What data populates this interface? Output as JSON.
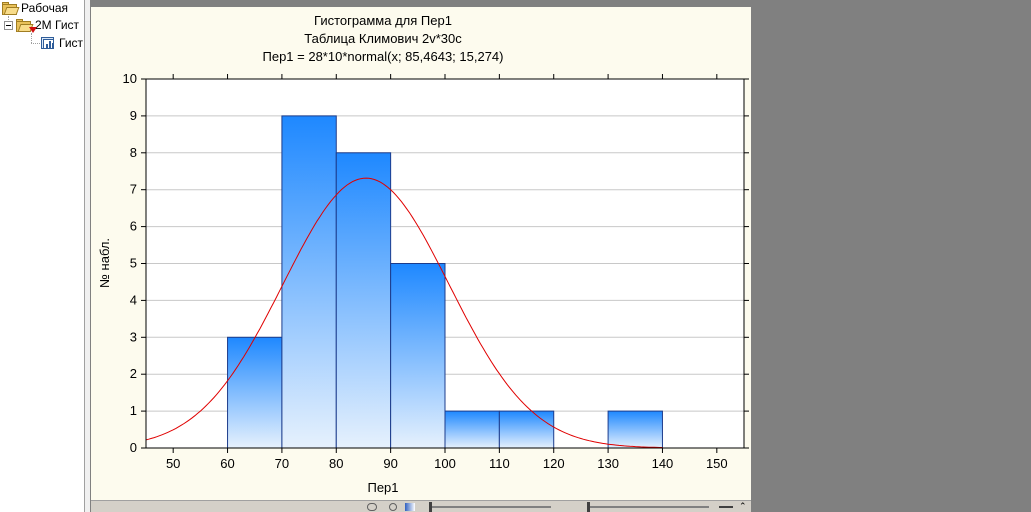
{
  "tree": {
    "root_label": "Рабочая",
    "child_label": "2M Гист",
    "leaf_label": "Гист"
  },
  "chart_data": {
    "type": "bar",
    "title": "Гистограмма для Пер1",
    "subtitle": "Таблица Климович 2v*30c",
    "subtitle2": "Пер1 = 28*10*normal(x; 85,4643; 15,274)",
    "xlabel": "Пер1",
    "ylabel": "№ набл.",
    "xlim": [
      45,
      155
    ],
    "ylim": [
      0,
      10
    ],
    "x_ticks": [
      50,
      60,
      70,
      80,
      90,
      100,
      110,
      120,
      130,
      140,
      150
    ],
    "y_ticks": [
      0,
      1,
      2,
      3,
      4,
      5,
      6,
      7,
      8,
      9,
      10
    ],
    "bins": [
      {
        "from": 60,
        "to": 70,
        "count": 3
      },
      {
        "from": 70,
        "to": 80,
        "count": 9
      },
      {
        "from": 80,
        "to": 90,
        "count": 8
      },
      {
        "from": 90,
        "to": 100,
        "count": 5
      },
      {
        "from": 100,
        "to": 110,
        "count": 1
      },
      {
        "from": 110,
        "to": 120,
        "count": 1
      },
      {
        "from": 120,
        "to": 130,
        "count": 0
      },
      {
        "from": 130,
        "to": 140,
        "count": 1
      }
    ],
    "normal_curve": {
      "n": 28,
      "bin_width": 10,
      "mean": 85.4643,
      "sd": 15.274,
      "color": "#e00000"
    },
    "grid": true,
    "bar_fill_top": "#1e88ff",
    "bar_fill_bottom": "#e6f1fd",
    "bar_stroke": "#1c3c8c"
  }
}
